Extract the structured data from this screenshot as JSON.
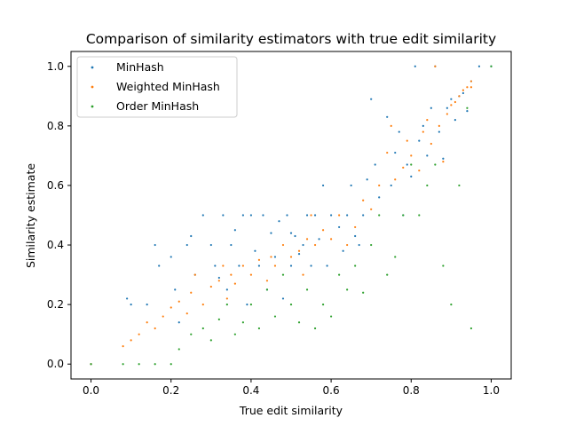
{
  "chart_data": {
    "type": "scatter",
    "title": "Comparison of similarity estimators with true edit similarity",
    "xlabel": "True edit similarity",
    "ylabel": "Similarity estimate",
    "xlim": [
      -0.05,
      1.05
    ],
    "ylim": [
      -0.05,
      1.05
    ],
    "xticks": [
      "0.0",
      "0.2",
      "0.4",
      "0.6",
      "0.8",
      "1.0"
    ],
    "yticks": [
      "0.0",
      "0.2",
      "0.4",
      "0.6",
      "0.8",
      "1.0"
    ],
    "grid": false,
    "legend_position": "top-left",
    "series": [
      {
        "name": "MinHash",
        "color": "#1f77b4",
        "points": [
          [
            0.0,
            0.0
          ],
          [
            0.09,
            0.22
          ],
          [
            0.1,
            0.2
          ],
          [
            0.14,
            0.2
          ],
          [
            0.16,
            0.4
          ],
          [
            0.17,
            0.33
          ],
          [
            0.2,
            0.36
          ],
          [
            0.21,
            0.25
          ],
          [
            0.22,
            0.14
          ],
          [
            0.24,
            0.4
          ],
          [
            0.25,
            0.43
          ],
          [
            0.26,
            0.3
          ],
          [
            0.28,
            0.5
          ],
          [
            0.3,
            0.4
          ],
          [
            0.31,
            0.33
          ],
          [
            0.32,
            0.29
          ],
          [
            0.33,
            0.5
          ],
          [
            0.34,
            0.25
          ],
          [
            0.35,
            0.4
          ],
          [
            0.36,
            0.45
          ],
          [
            0.37,
            0.33
          ],
          [
            0.38,
            0.5
          ],
          [
            0.39,
            0.2
          ],
          [
            0.4,
            0.5
          ],
          [
            0.41,
            0.38
          ],
          [
            0.42,
            0.33
          ],
          [
            0.43,
            0.5
          ],
          [
            0.44,
            0.25
          ],
          [
            0.45,
            0.44
          ],
          [
            0.46,
            0.36
          ],
          [
            0.47,
            0.48
          ],
          [
            0.48,
            0.22
          ],
          [
            0.49,
            0.5
          ],
          [
            0.5,
            0.44
          ],
          [
            0.5,
            0.33
          ],
          [
            0.51,
            0.43
          ],
          [
            0.52,
            0.37
          ],
          [
            0.53,
            0.4
          ],
          [
            0.54,
            0.5
          ],
          [
            0.55,
            0.33
          ],
          [
            0.56,
            0.5
          ],
          [
            0.57,
            0.42
          ],
          [
            0.58,
            0.6
          ],
          [
            0.59,
            0.33
          ],
          [
            0.6,
            0.5
          ],
          [
            0.62,
            0.46
          ],
          [
            0.63,
            0.38
          ],
          [
            0.64,
            0.5
          ],
          [
            0.65,
            0.6
          ],
          [
            0.66,
            0.43
          ],
          [
            0.67,
            0.4
          ],
          [
            0.68,
            0.5
          ],
          [
            0.69,
            0.62
          ],
          [
            0.7,
            0.89
          ],
          [
            0.71,
            0.67
          ],
          [
            0.72,
            0.56
          ],
          [
            0.74,
            0.83
          ],
          [
            0.75,
            0.6
          ],
          [
            0.76,
            0.71
          ],
          [
            0.77,
            0.78
          ],
          [
            0.78,
            0.5
          ],
          [
            0.79,
            0.67
          ],
          [
            0.8,
            0.63
          ],
          [
            0.81,
            1.0
          ],
          [
            0.82,
            0.75
          ],
          [
            0.83,
            0.8
          ],
          [
            0.84,
            0.7
          ],
          [
            0.85,
            0.86
          ],
          [
            0.86,
            1.0
          ],
          [
            0.87,
            0.78
          ],
          [
            0.88,
            0.69
          ],
          [
            0.89,
            0.86
          ],
          [
            0.9,
            0.89
          ],
          [
            0.91,
            0.82
          ],
          [
            0.92,
            0.9
          ],
          [
            0.93,
            0.91
          ],
          [
            0.94,
            0.85
          ],
          [
            0.95,
            0.95
          ],
          [
            0.97,
            1.0
          ],
          [
            1.0,
            1.0
          ]
        ]
      },
      {
        "name": "Weighted MinHash",
        "color": "#ff7f0e",
        "points": [
          [
            0.0,
            0.0
          ],
          [
            0.08,
            0.06
          ],
          [
            0.1,
            0.08
          ],
          [
            0.12,
            0.1
          ],
          [
            0.14,
            0.14
          ],
          [
            0.16,
            0.12
          ],
          [
            0.18,
            0.16
          ],
          [
            0.2,
            0.19
          ],
          [
            0.22,
            0.21
          ],
          [
            0.24,
            0.17
          ],
          [
            0.25,
            0.24
          ],
          [
            0.26,
            0.3
          ],
          [
            0.28,
            0.2
          ],
          [
            0.3,
            0.26
          ],
          [
            0.32,
            0.28
          ],
          [
            0.33,
            0.33
          ],
          [
            0.34,
            0.22
          ],
          [
            0.35,
            0.3
          ],
          [
            0.36,
            0.27
          ],
          [
            0.38,
            0.33
          ],
          [
            0.4,
            0.3
          ],
          [
            0.42,
            0.35
          ],
          [
            0.44,
            0.28
          ],
          [
            0.45,
            0.36
          ],
          [
            0.46,
            0.33
          ],
          [
            0.48,
            0.4
          ],
          [
            0.5,
            0.36
          ],
          [
            0.52,
            0.38
          ],
          [
            0.53,
            0.3
          ],
          [
            0.54,
            0.42
          ],
          [
            0.55,
            0.5
          ],
          [
            0.56,
            0.4
          ],
          [
            0.58,
            0.45
          ],
          [
            0.6,
            0.42
          ],
          [
            0.62,
            0.5
          ],
          [
            0.64,
            0.4
          ],
          [
            0.66,
            0.46
          ],
          [
            0.68,
            0.55
          ],
          [
            0.7,
            0.52
          ],
          [
            0.72,
            0.6
          ],
          [
            0.74,
            0.71
          ],
          [
            0.75,
            0.8
          ],
          [
            0.76,
            0.62
          ],
          [
            0.78,
            0.66
          ],
          [
            0.79,
            0.75
          ],
          [
            0.8,
            0.7
          ],
          [
            0.82,
            0.65
          ],
          [
            0.83,
            0.78
          ],
          [
            0.84,
            0.82
          ],
          [
            0.85,
            0.74
          ],
          [
            0.86,
            1.0
          ],
          [
            0.87,
            0.8
          ],
          [
            0.88,
            0.68
          ],
          [
            0.89,
            0.84
          ],
          [
            0.9,
            0.87
          ],
          [
            0.91,
            0.88
          ],
          [
            0.92,
            0.9
          ],
          [
            0.93,
            0.92
          ],
          [
            0.94,
            0.93
          ],
          [
            0.95,
            0.95
          ],
          [
            0.95,
            0.93
          ]
        ]
      },
      {
        "name": "Order MinHash",
        "color": "#2ca02c",
        "points": [
          [
            0.0,
            0.0
          ],
          [
            0.08,
            0.0
          ],
          [
            0.12,
            0.0
          ],
          [
            0.16,
            0.0
          ],
          [
            0.2,
            0.0
          ],
          [
            0.22,
            0.05
          ],
          [
            0.25,
            0.1
          ],
          [
            0.28,
            0.12
          ],
          [
            0.3,
            0.08
          ],
          [
            0.32,
            0.15
          ],
          [
            0.34,
            0.2
          ],
          [
            0.36,
            0.1
          ],
          [
            0.38,
            0.14
          ],
          [
            0.4,
            0.2
          ],
          [
            0.42,
            0.12
          ],
          [
            0.44,
            0.25
          ],
          [
            0.46,
            0.16
          ],
          [
            0.48,
            0.3
          ],
          [
            0.5,
            0.2
          ],
          [
            0.52,
            0.14
          ],
          [
            0.54,
            0.25
          ],
          [
            0.56,
            0.12
          ],
          [
            0.58,
            0.2
          ],
          [
            0.6,
            0.16
          ],
          [
            0.62,
            0.3
          ],
          [
            0.64,
            0.25
          ],
          [
            0.66,
            0.33
          ],
          [
            0.68,
            0.24
          ],
          [
            0.7,
            0.4
          ],
          [
            0.72,
            0.5
          ],
          [
            0.74,
            0.3
          ],
          [
            0.76,
            0.36
          ],
          [
            0.78,
            0.5
          ],
          [
            0.8,
            0.67
          ],
          [
            0.82,
            0.5
          ],
          [
            0.84,
            0.6
          ],
          [
            0.86,
            0.67
          ],
          [
            0.88,
            0.33
          ],
          [
            0.9,
            0.2
          ],
          [
            0.92,
            0.6
          ],
          [
            0.94,
            0.86
          ],
          [
            0.95,
            0.12
          ],
          [
            1.0,
            1.0
          ]
        ]
      }
    ]
  }
}
